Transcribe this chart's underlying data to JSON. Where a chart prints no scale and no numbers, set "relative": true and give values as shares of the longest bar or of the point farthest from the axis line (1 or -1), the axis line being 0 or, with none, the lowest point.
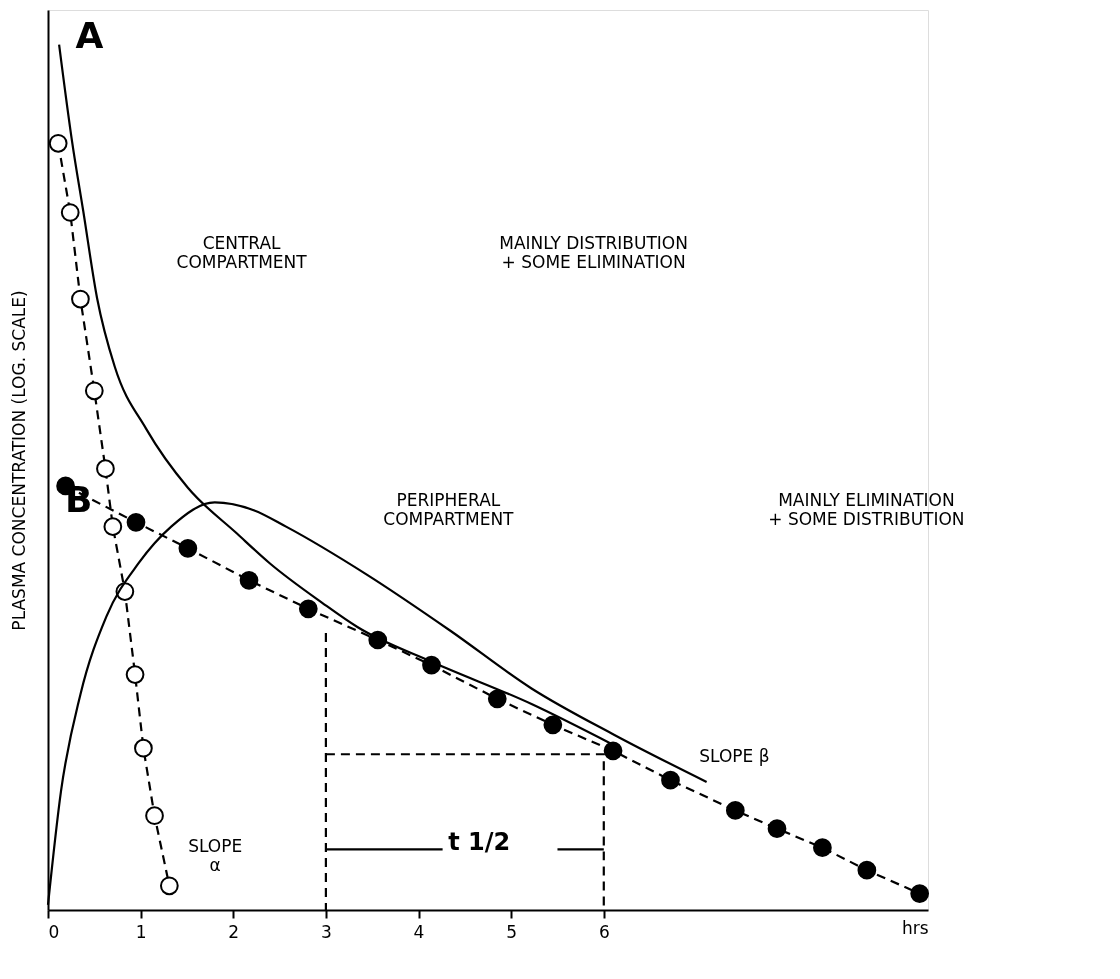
{
  "chart_data": {
    "type": "line",
    "xlabel": "hrs",
    "ylabel": "PLASMA CONCENTRATION (LOG. SCALE)",
    "relative": true,
    "xlim": [
      0,
      9.5
    ],
    "xticks": [
      0,
      1,
      2,
      3,
      4,
      5,
      6
    ],
    "tick_labels": "x",
    "grid": false,
    "series": [
      {
        "color": "#000000",
        "marker": "circle",
        "line_style": "dashed",
        "x": [
          0.11,
          0.24,
          0.35,
          0.5,
          0.62,
          0.7,
          0.83,
          0.94,
          1.03,
          1.15,
          1.31
        ],
        "values": [
          0.886,
          0.806,
          0.706,
          0.6,
          0.51,
          0.443,
          0.368,
          0.272,
          0.187,
          0.109,
          0.028
        ]
      },
      {
        "color": "#000000",
        "marker": "circle",
        "line_style": "dashed",
        "x": [
          0.19,
          0.95,
          1.51,
          2.17,
          2.81,
          3.56,
          4.14,
          4.85,
          5.45,
          6.1,
          6.72,
          7.42,
          7.87,
          8.36,
          8.84,
          9.41
        ],
        "values": [
          0.49,
          0.448,
          0.418,
          0.381,
          0.348,
          0.312,
          0.283,
          0.244,
          0.214,
          0.184,
          0.15,
          0.115,
          0.094,
          0.072,
          0.046,
          0.019
        ]
      },
      {
        "color": "#000000",
        "marker": "none",
        "line_style": "solid",
        "x": [
          0.12,
          0.26,
          0.38,
          0.53,
          0.72,
          1.06,
          1.51,
          2.04,
          2.39,
          2.96,
          3.34,
          4.16,
          5.22,
          6.1
        ],
        "values": [
          1.0,
          0.888,
          0.808,
          0.707,
          0.628,
          0.556,
          0.488,
          0.435,
          0.401,
          0.355,
          0.327,
          0.286,
          0.238,
          0.191
        ]
      },
      {
        "color": "#000000",
        "marker": "none",
        "line_style": "solid",
        "x": [
          0,
          0.14,
          0.35,
          0.63,
          0.98,
          1.33,
          1.8,
          2.22,
          2.57,
          3.45,
          4.34,
          5.22,
          6.12,
          7.11
        ],
        "values": [
          0.006,
          0.137,
          0.249,
          0.339,
          0.401,
          0.443,
          0.471,
          0.462,
          0.443,
          0.387,
          0.323,
          0.256,
          0.202,
          0.148
        ]
      },
      {
        "color": "#000000",
        "marker": "none",
        "line_style": "dashed",
        "x": [
          3,
          3
        ],
        "values": [
          0.32,
          0
        ]
      },
      {
        "color": "#000000",
        "marker": "none",
        "line_style": "dashed",
        "x": [
          3,
          6,
          6
        ],
        "values": [
          0.18,
          0.18,
          0
        ]
      },
      {
        "color": "#000000",
        "marker": "none",
        "line_style": "solid",
        "x": [
          3,
          4.26,
          4.9,
          5.5,
          6
        ],
        "values": [
          0.07,
          0.07,
          null,
          0.07,
          0.07
        ]
      }
    ],
    "annotations": [
      "A",
      "B",
      "CENTRAL\nCOMPARTMENT",
      "MAINLY DISTRIBUTION\n+ SOME ELIMINATION",
      "PERIPHERAL\nCOMPARTMENT",
      "MAINLY ELIMINATION\n+ SOME DISTRIBUTION",
      "SLOPE\nα",
      "SLOPE β",
      "t 1/2"
    ]
  }
}
